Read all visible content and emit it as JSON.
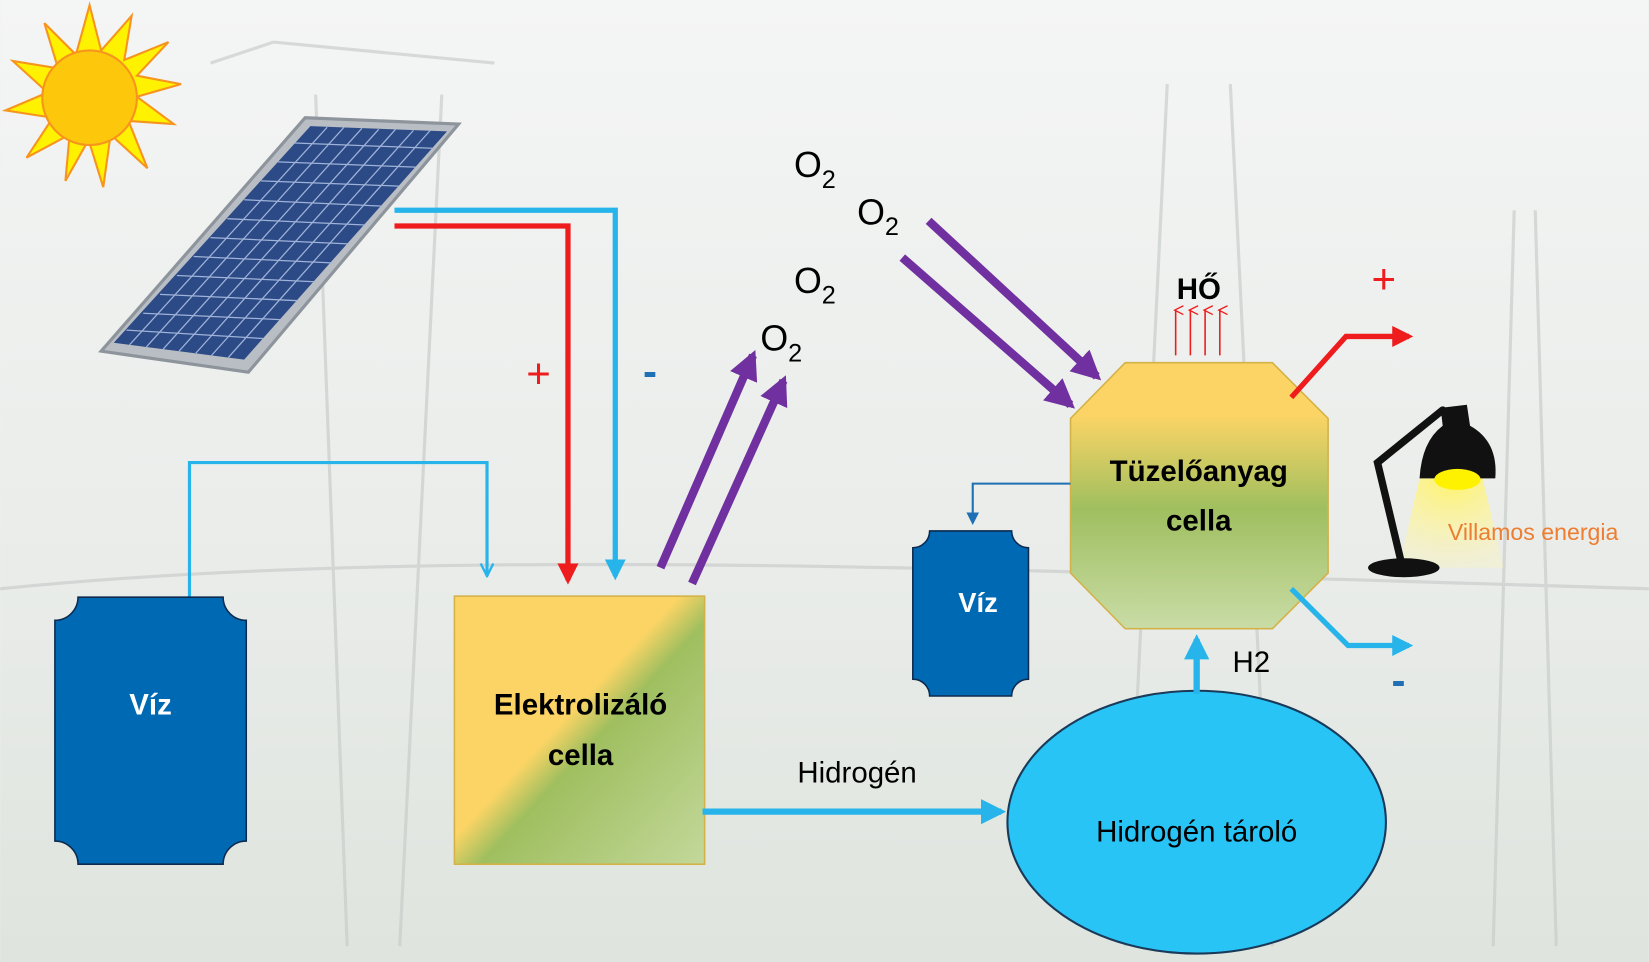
{
  "solar_panel": {
    "plus": "+",
    "minus": "-"
  },
  "oxygen": [
    {
      "base": "O",
      "sub": "2"
    },
    {
      "base": "O",
      "sub": "2"
    },
    {
      "base": "O",
      "sub": "2"
    },
    {
      "base": "O",
      "sub": "2"
    }
  ],
  "water_tank_left": {
    "label": "Víz"
  },
  "electrolyzer": {
    "lines": [
      "Elektrolizáló",
      "cella"
    ]
  },
  "hydrogen_flow": {
    "label": "Hidrogén"
  },
  "hydrogen_storage": {
    "label": "Hidrogén tároló"
  },
  "h2_flow": {
    "label": "H2"
  },
  "heat": {
    "label": "HŐ"
  },
  "fuel_cell": {
    "lines": [
      "Tüzelőanyag",
      "cella"
    ]
  },
  "water_tank_right": {
    "label": "Víz"
  },
  "output": {
    "plus": "+",
    "minus": "-",
    "label": "Villamos energia"
  }
}
